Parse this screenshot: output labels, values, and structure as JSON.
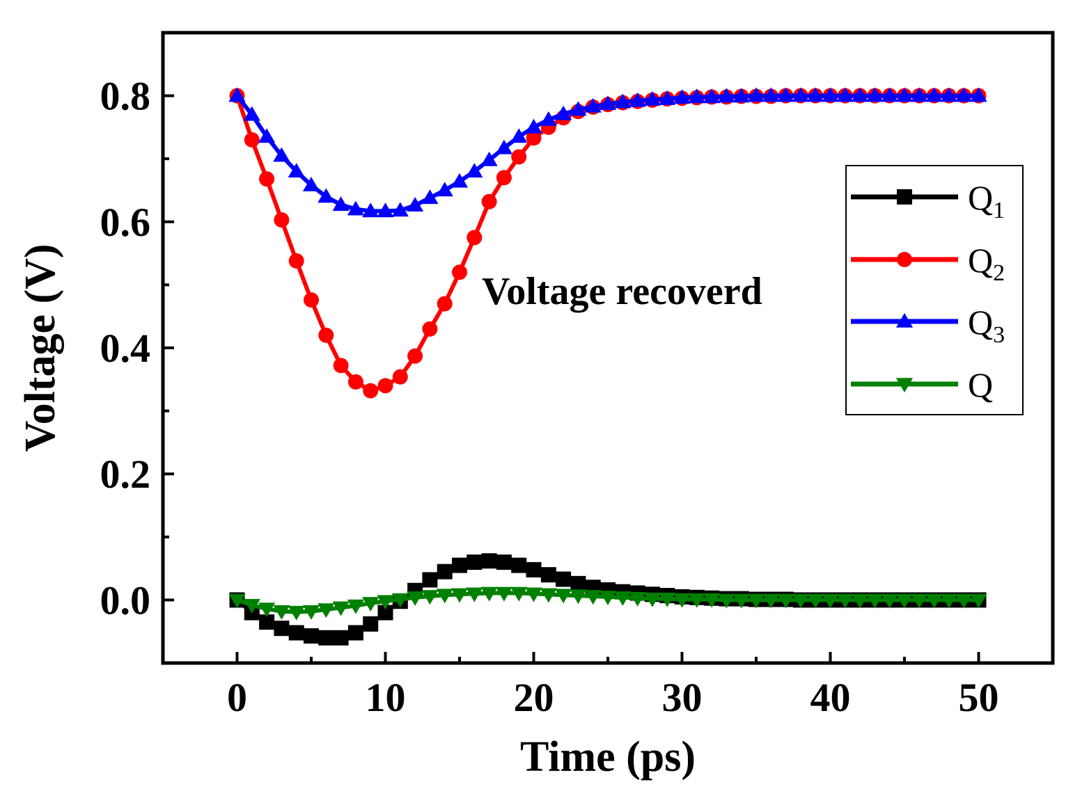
{
  "chart_data": {
    "type": "line",
    "xlabel": "Time (ps)",
    "ylabel": "Voltage (V)",
    "xlim": [
      -5,
      55
    ],
    "ylim": [
      -0.1,
      0.9
    ],
    "xticks": [
      0,
      10,
      20,
      30,
      40,
      50
    ],
    "xtick_labels": [
      "0",
      "10",
      "20",
      "30",
      "40",
      "50"
    ],
    "yticks": [
      0.0,
      0.2,
      0.4,
      0.6,
      0.8
    ],
    "ytick_labels": [
      "0.0",
      "0.2",
      "0.4",
      "0.6",
      "0.8"
    ],
    "grid": false,
    "legend_position": "right",
    "annotation": "Voltage recoverd",
    "x": [
      0,
      1,
      2,
      3,
      4,
      5,
      6,
      7,
      8,
      9,
      10,
      11,
      12,
      13,
      14,
      15,
      16,
      17,
      18,
      19,
      20,
      21,
      22,
      23,
      24,
      25,
      26,
      27,
      28,
      29,
      30,
      31,
      32,
      33,
      34,
      35,
      36,
      37,
      38,
      39,
      40,
      41,
      42,
      43,
      44,
      45,
      46,
      47,
      48,
      49,
      50
    ],
    "series": [
      {
        "name": "Q",
        "subscript": "1",
        "color": "#000000",
        "marker": "square",
        "values": [
          0.0,
          -0.02,
          -0.035,
          -0.045,
          -0.052,
          -0.057,
          -0.06,
          -0.06,
          -0.052,
          -0.038,
          -0.02,
          -0.002,
          0.015,
          0.032,
          0.045,
          0.055,
          0.06,
          0.062,
          0.06,
          0.055,
          0.048,
          0.04,
          0.033,
          0.026,
          0.02,
          0.016,
          0.013,
          0.011,
          0.009,
          0.007,
          0.005,
          0.004,
          0.003,
          0.002,
          0.002,
          0.001,
          0.001,
          0.001,
          0.0,
          0.0,
          0.0,
          0.0,
          0.0,
          0.0,
          0.0,
          0.0,
          0.0,
          0.0,
          0.0,
          0.0,
          0.0
        ]
      },
      {
        "name": "Q",
        "subscript": "2",
        "color": "#ff0000",
        "marker": "circle",
        "values": [
          0.8,
          0.73,
          0.668,
          0.603,
          0.538,
          0.476,
          0.42,
          0.372,
          0.346,
          0.332,
          0.34,
          0.354,
          0.387,
          0.43,
          0.47,
          0.52,
          0.575,
          0.632,
          0.67,
          0.703,
          0.733,
          0.75,
          0.765,
          0.775,
          0.782,
          0.786,
          0.789,
          0.791,
          0.793,
          0.795,
          0.796,
          0.797,
          0.798,
          0.798,
          0.799,
          0.799,
          0.799,
          0.8,
          0.8,
          0.8,
          0.8,
          0.8,
          0.8,
          0.8,
          0.8,
          0.8,
          0.8,
          0.8,
          0.8,
          0.8,
          0.8
        ]
      },
      {
        "name": "Q",
        "subscript": "3",
        "color": "#0000ff",
        "marker": "triangle-up",
        "values": [
          0.8,
          0.77,
          0.735,
          0.705,
          0.68,
          0.658,
          0.64,
          0.627,
          0.62,
          0.617,
          0.617,
          0.618,
          0.626,
          0.638,
          0.65,
          0.664,
          0.68,
          0.698,
          0.717,
          0.735,
          0.75,
          0.762,
          0.771,
          0.778,
          0.783,
          0.787,
          0.79,
          0.792,
          0.794,
          0.795,
          0.797,
          0.798,
          0.798,
          0.799,
          0.799,
          0.8,
          0.8,
          0.8,
          0.8,
          0.8,
          0.8,
          0.8,
          0.8,
          0.8,
          0.8,
          0.8,
          0.8,
          0.8,
          0.8,
          0.8,
          0.8
        ]
      },
      {
        "name": "Q",
        "subscript": "",
        "color": "#008000",
        "marker": "triangle-down",
        "values": [
          0.0,
          -0.008,
          -0.014,
          -0.018,
          -0.019,
          -0.018,
          -0.015,
          -0.012,
          -0.009,
          -0.005,
          -0.002,
          0.001,
          0.004,
          0.006,
          0.008,
          0.009,
          0.01,
          0.011,
          0.011,
          0.011,
          0.01,
          0.009,
          0.008,
          0.007,
          0.006,
          0.005,
          0.004,
          0.003,
          0.002,
          0.002,
          0.001,
          0.001,
          0.001,
          0.0,
          0.0,
          0.0,
          0.0,
          0.0,
          0.0,
          0.0,
          0.0,
          0.0,
          0.0,
          0.0,
          0.0,
          0.0,
          0.0,
          0.0,
          0.0,
          0.0,
          0.0
        ]
      }
    ]
  }
}
